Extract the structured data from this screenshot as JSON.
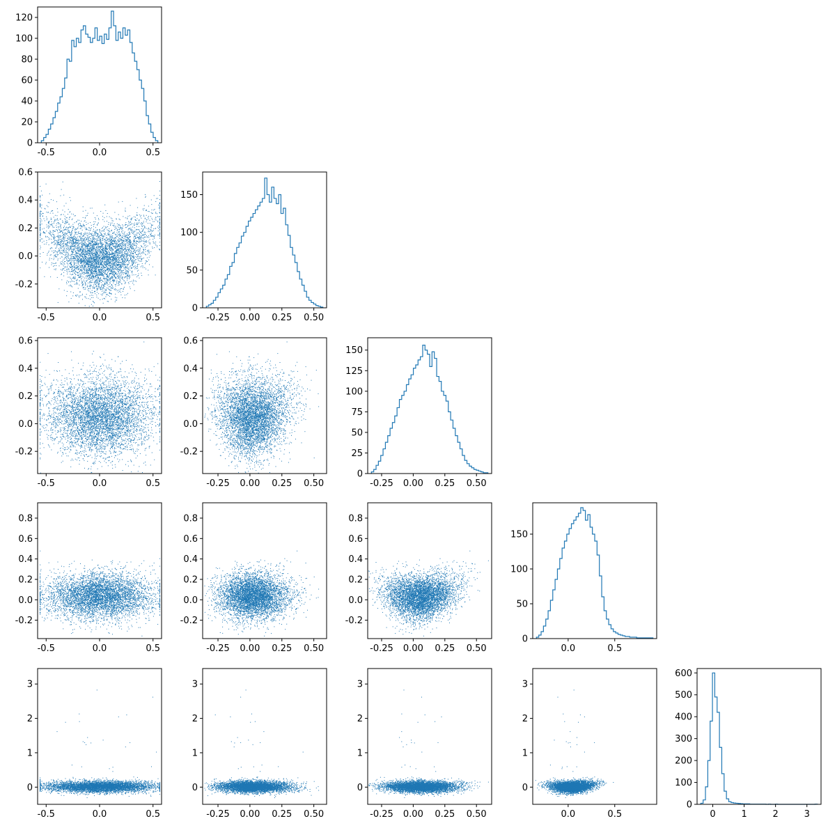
{
  "chart_data": {
    "type": "corner-plot",
    "grid": false,
    "legend": "none",
    "colors": {
      "series": "#1f77b4",
      "axes": "#000000",
      "background": "#ffffff"
    },
    "n_variables": 5,
    "variables": [
      {
        "index": 0,
        "range": [
          -0.58,
          0.58
        ],
        "ticks": [
          "-0.5",
          "0.0",
          "0.5"
        ],
        "tick_values": [
          -0.5,
          0.0,
          0.5
        ]
      },
      {
        "index": 1,
        "range": [
          -0.37,
          0.6
        ],
        "ticks": [
          "-0.2",
          "0.0",
          "0.2",
          "0.4",
          "0.6"
        ],
        "tick_values": [
          -0.2,
          0.0,
          0.2,
          0.4,
          0.6
        ],
        "x_ticks": [
          "-0.25",
          "0.00",
          "0.25",
          "0.50"
        ],
        "x_tick_values": [
          -0.25,
          0.0,
          0.25,
          0.5
        ]
      },
      {
        "index": 2,
        "range": [
          -0.36,
          0.62
        ],
        "ticks": [
          "-0.2",
          "0.0",
          "0.2",
          "0.4",
          "0.6"
        ],
        "tick_values": [
          -0.2,
          0.0,
          0.2,
          0.4,
          0.6
        ],
        "x_ticks": [
          "-0.25",
          "0.00",
          "0.25",
          "0.50"
        ],
        "x_tick_values": [
          -0.25,
          0.0,
          0.25,
          0.5
        ]
      },
      {
        "index": 3,
        "range": [
          -0.38,
          0.95
        ],
        "ticks": [
          "-0.2",
          "0.0",
          "0.2",
          "0.4",
          "0.6",
          "0.8"
        ],
        "tick_values": [
          -0.2,
          0.0,
          0.2,
          0.4,
          0.6,
          0.8
        ],
        "x_ticks": [
          "0.0",
          "0.5"
        ],
        "x_tick_values": [
          0.0,
          0.5
        ]
      },
      {
        "index": 4,
        "range": [
          -0.5,
          3.45
        ],
        "ticks": [
          "0",
          "1",
          "2",
          "3"
        ],
        "tick_values": [
          0,
          1,
          2,
          3
        ]
      }
    ],
    "histograms": [
      {
        "var": 0,
        "bins": 50,
        "ylim": [
          0,
          130
        ],
        "yticks": [
          0,
          20,
          40,
          60,
          80,
          100,
          120
        ],
        "counts": [
          2,
          5,
          8,
          13,
          18,
          24,
          30,
          38,
          44,
          52,
          62,
          80,
          78,
          98,
          92,
          100,
          96,
          108,
          112,
          104,
          101,
          96,
          100,
          110,
          98,
          102,
          95,
          104,
          99,
          110,
          126,
          112,
          98,
          106,
          100,
          110,
          103,
          108,
          96,
          86,
          78,
          70,
          60,
          52,
          40,
          26,
          18,
          10,
          5,
          2
        ]
      },
      {
        "var": 1,
        "bins": 50,
        "ylim": [
          0,
          180
        ],
        "yticks": [
          0,
          50,
          100,
          150
        ],
        "counts": [
          2,
          4,
          6,
          10,
          14,
          20,
          25,
          30,
          38,
          44,
          55,
          60,
          72,
          80,
          86,
          95,
          100,
          108,
          115,
          120,
          125,
          130,
          135,
          140,
          145,
          172,
          150,
          140,
          160,
          145,
          138,
          150,
          125,
          132,
          110,
          96,
          80,
          70,
          60,
          48,
          38,
          30,
          22,
          14,
          10,
          7,
          5,
          3,
          2,
          1
        ]
      },
      {
        "var": 2,
        "bins": 50,
        "ylim": [
          0,
          165
        ],
        "yticks": [
          0,
          25,
          50,
          75,
          100,
          125,
          150
        ],
        "counts": [
          2,
          5,
          10,
          15,
          22,
          30,
          38,
          46,
          55,
          62,
          70,
          80,
          90,
          95,
          100,
          108,
          115,
          120,
          128,
          132,
          138,
          142,
          156,
          150,
          145,
          130,
          148,
          140,
          118,
          112,
          100,
          95,
          88,
          75,
          65,
          55,
          46,
          38,
          30,
          22,
          16,
          12,
          9,
          7,
          5,
          4,
          3,
          2,
          1,
          1
        ]
      },
      {
        "var": 3,
        "bins": 50,
        "ylim": [
          0,
          195
        ],
        "yticks": [
          0,
          50,
          100,
          150
        ],
        "counts": [
          2,
          5,
          10,
          18,
          28,
          40,
          55,
          70,
          85,
          100,
          115,
          130,
          140,
          150,
          158,
          165,
          170,
          175,
          180,
          188,
          184,
          170,
          178,
          160,
          150,
          140,
          120,
          90,
          60,
          40,
          28,
          20,
          14,
          10,
          8,
          6,
          5,
          4,
          3,
          3,
          2,
          2,
          2,
          1,
          1,
          1,
          1,
          1,
          1,
          1
        ]
      },
      {
        "var": 4,
        "bins": 50,
        "ylim": [
          0,
          620
        ],
        "yticks": [
          0,
          100,
          200,
          300,
          400,
          500,
          600
        ],
        "counts": [
          5,
          20,
          80,
          200,
          380,
          600,
          490,
          420,
          260,
          140,
          60,
          25,
          12,
          8,
          6,
          5,
          4,
          3,
          2,
          2,
          2,
          1,
          1,
          1,
          1,
          1,
          1,
          1,
          0,
          1,
          0,
          0,
          1,
          0,
          0,
          0,
          0,
          0,
          0,
          0,
          0,
          0,
          0,
          0,
          0,
          0,
          0,
          0,
          0,
          1
        ]
      }
    ],
    "scatter_pairs": [
      {
        "x_var": 0,
        "y_var": 1,
        "points_per_panel": 5000
      },
      {
        "x_var": 0,
        "y_var": 2,
        "points_per_panel": 5000
      },
      {
        "x_var": 1,
        "y_var": 2,
        "points_per_panel": 5000
      },
      {
        "x_var": 0,
        "y_var": 3,
        "points_per_panel": 5000
      },
      {
        "x_var": 1,
        "y_var": 3,
        "points_per_panel": 5000
      },
      {
        "x_var": 2,
        "y_var": 3,
        "points_per_panel": 5000
      },
      {
        "x_var": 0,
        "y_var": 4,
        "points_per_panel": 5000
      },
      {
        "x_var": 1,
        "y_var": 4,
        "points_per_panel": 5000
      },
      {
        "x_var": 2,
        "y_var": 4,
        "points_per_panel": 5000
      },
      {
        "x_var": 3,
        "y_var": 4,
        "points_per_panel": 5000
      }
    ]
  }
}
